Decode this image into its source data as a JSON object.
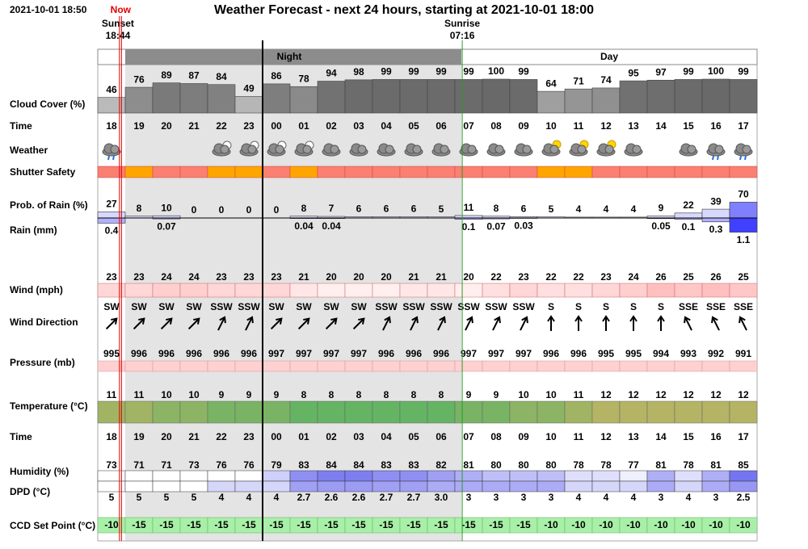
{
  "header": {
    "timestamp": "2021-10-01 18:50",
    "now": "Now",
    "title": "Weather Forecast - next 24 hours, starting at 2021-10-01 18:00",
    "sunset_label": "Sunset",
    "sunset_time": "18:44",
    "sunrise_label": "Sunrise",
    "sunrise_time": "07:16",
    "night": "Night",
    "day": "Day"
  },
  "row_labels": {
    "cloud_cover": "Cloud Cover (%)",
    "time": "Time",
    "weather": "Weather",
    "shutter": "Shutter Safety",
    "rain_prob": "Prob. of Rain (%)",
    "rain": "Rain (mm)",
    "wind": "Wind (mph)",
    "wind_direction": "Wind Direction",
    "pressure": "Pressure (mb)",
    "temperature": "Temperature (°C)",
    "time2": "Time",
    "humidity": "Humidity (%)",
    "dpd": "DPD (°C)",
    "ccd": "CCD Set Point (°C)"
  },
  "forecast": {
    "hours": [
      "18",
      "19",
      "20",
      "21",
      "22",
      "23",
      "00",
      "01",
      "02",
      "03",
      "04",
      "05",
      "06",
      "07",
      "08",
      "09",
      "10",
      "11",
      "12",
      "13",
      "14",
      "15",
      "16",
      "17"
    ],
    "cloud_cover": [
      46,
      76,
      89,
      87,
      84,
      49,
      86,
      78,
      94,
      98,
      99,
      99,
      99,
      99,
      100,
      99,
      64,
      71,
      74,
      95,
      97,
      99,
      100,
      99
    ],
    "rain_prob": [
      27,
      8,
      10,
      0,
      0,
      0,
      0,
      8,
      7,
      6,
      6,
      6,
      5,
      11,
      8,
      6,
      5,
      4,
      4,
      4,
      9,
      22,
      39,
      70
    ],
    "rain": [
      0.4,
      null,
      0.07,
      null,
      null,
      null,
      null,
      0.04,
      0.04,
      null,
      null,
      null,
      null,
      0.1,
      0.07,
      0.03,
      null,
      null,
      null,
      null,
      0.05,
      0.1,
      0.3,
      1.1
    ],
    "wind": [
      23,
      23,
      24,
      24,
      23,
      23,
      23,
      21,
      20,
      20,
      20,
      21,
      21,
      20,
      22,
      23,
      22,
      22,
      23,
      24,
      26,
      25,
      26,
      25
    ],
    "wind_direction": [
      "SW",
      "SW",
      "SW",
      "SW",
      "SSW",
      "SSW",
      "SW",
      "SW",
      "SW",
      "SW",
      "SSW",
      "SSW",
      "SSW",
      "SSW",
      "SSW",
      "SSW",
      "S",
      "S",
      "S",
      "S",
      "S",
      "SSE",
      "SSE",
      "SSE"
    ],
    "pressure": [
      995,
      996,
      996,
      996,
      996,
      996,
      997,
      997,
      997,
      997,
      996,
      996,
      996,
      997,
      997,
      997,
      996,
      996,
      995,
      995,
      994,
      993,
      992,
      991
    ],
    "temperature": [
      11,
      11,
      10,
      10,
      9,
      9,
      9,
      8,
      8,
      8,
      8,
      8,
      8,
      9,
      9,
      10,
      10,
      11,
      12,
      12,
      12,
      12,
      12,
      12
    ],
    "humidity": [
      73,
      71,
      71,
      73,
      76,
      76,
      79,
      83,
      84,
      84,
      83,
      83,
      82,
      81,
      80,
      80,
      80,
      78,
      78,
      77,
      81,
      78,
      81,
      85
    ],
    "dpd": [
      5,
      5,
      5,
      5,
      4,
      4,
      4,
      2.7,
      2.6,
      2.6,
      2.7,
      2.7,
      {
        "value": 3,
        "label": "3.0"
      },
      3,
      3,
      3,
      3,
      4,
      4,
      4,
      3,
      4,
      3,
      2.5
    ],
    "ccd": [
      -10,
      -15,
      -15,
      -15,
      -15,
      -15,
      -15,
      -15,
      -15,
      -15,
      -15,
      -15,
      -15,
      -15,
      -15,
      -15,
      -10,
      -10,
      -10,
      -10,
      -10,
      -10,
      -10,
      -10
    ]
  }
}
